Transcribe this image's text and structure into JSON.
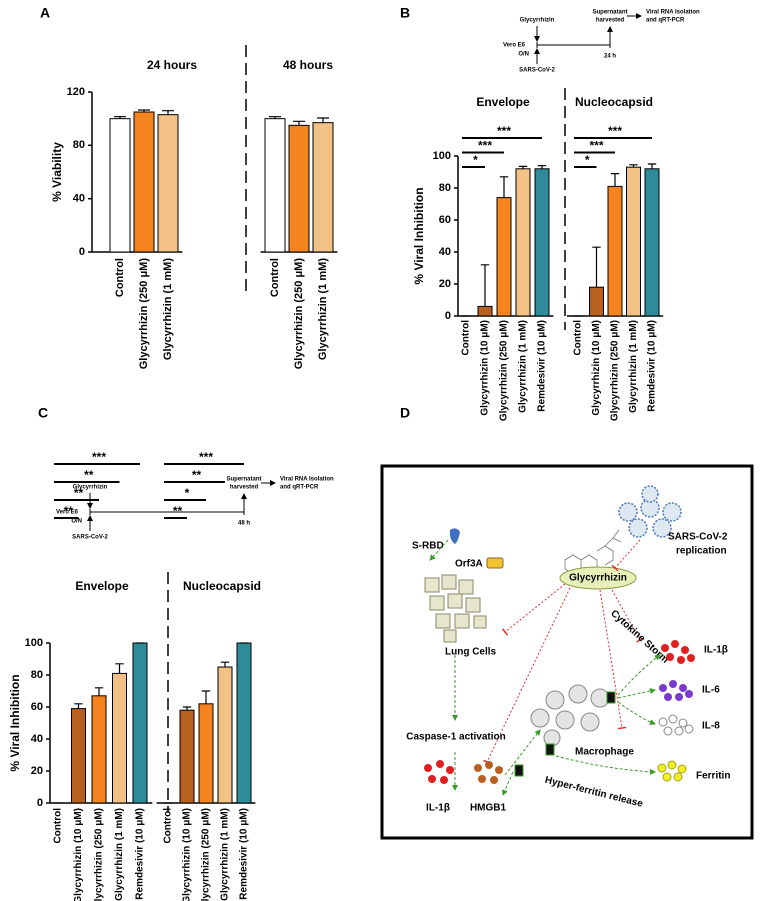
{
  "chart_data": [
    {
      "type": "bar",
      "panel": "A",
      "ylabel": "% Viability",
      "ylim": [
        0,
        120
      ],
      "yticks": [
        0,
        40,
        80,
        120
      ],
      "groups": [
        {
          "title": "24 hours",
          "categories": [
            "Control",
            "Glycyrrhizin (250 μM)",
            "Glycyrrhizin (1 mM)"
          ],
          "colors": [
            "#ffffff",
            "#f5841f",
            "#f2c185"
          ],
          "values": [
            100,
            105,
            103
          ],
          "errors": [
            1.5,
            1.5,
            3
          ]
        },
        {
          "title": "48 hours",
          "categories": [
            "Control",
            "Glycyrrhizin (250 μM)",
            "Glycyrrhizin (1 mM)"
          ],
          "colors": [
            "#ffffff",
            "#f5841f",
            "#f2c185"
          ],
          "values": [
            100,
            95,
            97
          ],
          "errors": [
            1.5,
            3,
            3.5
          ]
        }
      ]
    },
    {
      "type": "bar",
      "panel": "B",
      "ylabel": "% Viral Inhibition",
      "ylim": [
        0,
        100
      ],
      "yticks": [
        0,
        20,
        40,
        60,
        80,
        100
      ],
      "timeline": {
        "cell": "Vero E6",
        "treatment": "Glycyrrhizin",
        "infection": "SARS-CoV-2",
        "incubation": "O/N",
        "endpoint": "24 h",
        "harvest": [
          "Supernatant",
          "harvested"
        ],
        "readout": [
          "Viral RNA Isolation",
          "and qRT-PCR"
        ]
      },
      "groups": [
        {
          "title": "Envelope",
          "categories": [
            "Control",
            "Glycyrrhizin (10 μM)",
            "Glycyrrhizin (250 μM)",
            "Glycyrrhizin (1 mM)",
            "Remdesivir (10 μM)"
          ],
          "colors": [
            "#ffffff",
            "#b8601f",
            "#f5841f",
            "#f2c185",
            "#2e8b99"
          ],
          "values": [
            0,
            6,
            74,
            92,
            92
          ],
          "errors": [
            0,
            26,
            13,
            1.5,
            2
          ],
          "significance": [
            null,
            "*",
            "***",
            null,
            "***"
          ]
        },
        {
          "title": "Nucleocapsid",
          "categories": [
            "Control",
            "Glycyrrhizin (10 μM)",
            "Glycyrrhizin (250 μM)",
            "Glycyrrhizin (1 mM)",
            "Remdesivir (10 μM)"
          ],
          "colors": [
            "#ffffff",
            "#b8601f",
            "#f5841f",
            "#f2c185",
            "#2e8b99"
          ],
          "values": [
            0,
            18,
            81,
            93,
            92
          ],
          "errors": [
            0,
            25,
            8,
            1.5,
            3
          ],
          "significance": [
            null,
            "*",
            "***",
            null,
            "***"
          ]
        }
      ]
    },
    {
      "type": "bar",
      "panel": "C",
      "ylabel": "% Viral Inhibition",
      "ylim": [
        0,
        100
      ],
      "yticks": [
        0,
        20,
        40,
        60,
        80,
        100
      ],
      "timeline": {
        "cell": "Vero E6",
        "treatment": "Glycyrrhizin",
        "infection": "SARS-CoV-2",
        "incubation": "O/N",
        "endpoint": "48 h",
        "harvest": [
          "Supernatant",
          "harvested"
        ],
        "readout": [
          "Viral RNA Isolation",
          "and qRT-PCR"
        ]
      },
      "groups": [
        {
          "title": "Envelope",
          "categories": [
            "Control",
            "Glycyrrhizin (10 μM)",
            "Glycyrrhizin (250 μM)",
            "Glycyrrhizin (1 mM)",
            "Remdesivir (10 μM)"
          ],
          "colors": [
            "#ffffff",
            "#b8601f",
            "#f5841f",
            "#f2c185",
            "#2e8b99"
          ],
          "values": [
            0,
            59,
            67,
            81,
            100
          ],
          "errors": [
            0,
            3,
            5,
            6,
            0
          ],
          "significance": [
            null,
            "**",
            "**",
            "**",
            "***"
          ]
        },
        {
          "title": "Nucleocapsid",
          "categories": [
            "Control",
            "Glycyrrhizin (10 μM)",
            "Glycyrrhizin (250 μM)",
            "Glycyrrhizin (1 mM)",
            "Remdesivir (10 μM)"
          ],
          "colors": [
            "#ffffff",
            "#b8601f",
            "#f5841f",
            "#f2c185",
            "#2e8b99"
          ],
          "values": [
            0,
            58,
            62,
            85,
            100
          ],
          "errors": [
            0,
            2,
            8,
            3,
            0
          ],
          "significance": [
            null,
            "**",
            "*",
            "**",
            "***"
          ]
        }
      ]
    }
  ],
  "diagram": {
    "panel": "D",
    "s_rbd": "S-RBD",
    "orf3a": "Orf3A",
    "lung_cells": "Lung Cells",
    "drug": "Glycyrrhizin",
    "virus": [
      "SARS-CoV-2",
      "replication"
    ],
    "cytokine_storm": "Cytokine Storm",
    "il1b_top": "IL-1β",
    "il6": "IL-6",
    "il8": "IL-8",
    "caspase": "Caspase-1 activation",
    "macrophage": "Macrophage",
    "ferritin": "Ferritin",
    "hyperferritin": "Hyper-ferritin release",
    "il1b_bottom": "IL-1β",
    "hmgb1": "HMGB1"
  }
}
